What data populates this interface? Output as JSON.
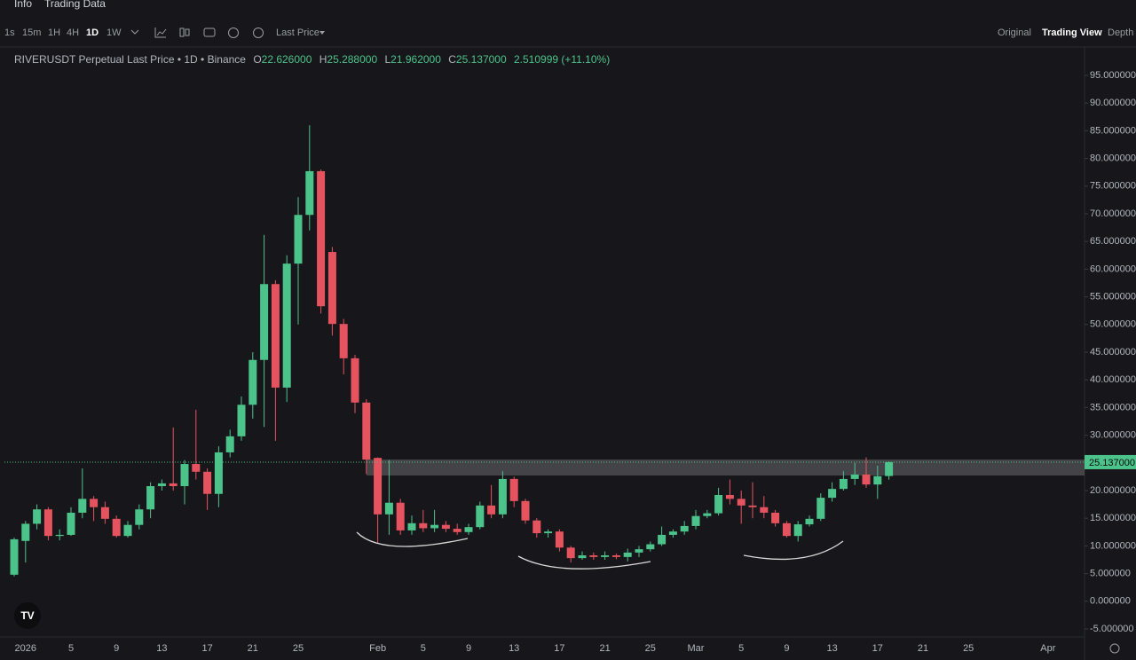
{
  "toolbar": {
    "tabs": [
      "Info",
      "Trading Data"
    ],
    "intervals": [
      "1s",
      "15m",
      "1H",
      "4H",
      "1D",
      "1W"
    ],
    "price_type": "Last Price",
    "views": [
      "Original",
      "Trading View",
      "Depth"
    ]
  },
  "chart_data": {
    "type": "candlestick",
    "title": "RIVERUSDT Perpetual Last Price • 1D • Binance",
    "ohlc_legend": [
      {
        "key": "O",
        "value": "22.626000"
      },
      {
        "key": "H",
        "value": "25.288000"
      },
      {
        "key": "L",
        "value": "21.962000"
      },
      {
        "key": "C",
        "value": "25.137000"
      }
    ],
    "change": "2.510999 (+11.10%)",
    "categories": [
      null,
      "2026",
      null,
      null,
      null,
      "5",
      null,
      null,
      null,
      "9",
      null,
      null,
      null,
      "13",
      null,
      null,
      null,
      "17",
      null,
      null,
      null,
      "21",
      null,
      null,
      null,
      "25",
      null,
      null,
      null,
      null,
      null,
      null,
      "Feb",
      null,
      null,
      null,
      "5",
      null,
      null,
      null,
      "9",
      null,
      null,
      null,
      "13",
      null,
      null,
      null,
      "17",
      null,
      null,
      null,
      "21",
      null,
      null,
      null,
      "25",
      null,
      null,
      null,
      "Mar",
      null,
      null,
      null,
      "5",
      null,
      null,
      null,
      "9",
      null,
      null,
      null,
      "13",
      null,
      null,
      null,
      "17",
      null,
      null,
      null,
      "21",
      null,
      null,
      null,
      "25",
      null,
      null,
      null,
      null,
      null,
      null,
      "Apr"
    ],
    "open": [
      4.8,
      10.9,
      14.0,
      16.6,
      11.8,
      12.0,
      16.0,
      18.5,
      17.0,
      14.9,
      11.8,
      13.8,
      16.6,
      20.8,
      21.3,
      20.8,
      24.8,
      23.4,
      19.4,
      26.9,
      29.8,
      35.5,
      43.6,
      57.3,
      38.6,
      61.0,
      69.8,
      77.7,
      63.1,
      50.1,
      43.9,
      35.9,
      25.9,
      15.7,
      17.8,
      12.8,
      14.1,
      13.2,
      13.8,
      13.1,
      12.5,
      13.4,
      17.3,
      15.7,
      22.1,
      18.1,
      14.6,
      12.3,
      12.6,
      9.7,
      7.8,
      8.3,
      8.0,
      8.3,
      8.0,
      8.8,
      9.4,
      10.3,
      12.0,
      12.6,
      13.6,
      15.4,
      15.9,
      19.2,
      18.5,
      17.3,
      17.0,
      16.0,
      14.1,
      11.8,
      13.9,
      14.9,
      18.7,
      20.3,
      22.1,
      22.9,
      21.1,
      22.626,
      null,
      null,
      null,
      null,
      null,
      null,
      null,
      null,
      null,
      null,
      null,
      null,
      null,
      null
    ],
    "high": [
      11.5,
      14.5,
      17.5,
      17.0,
      13.0,
      17.0,
      24.0,
      19.0,
      18.0,
      15.5,
      14.5,
      17.5,
      21.5,
      22.0,
      31.4,
      25.5,
      34.6,
      24.0,
      28.0,
      31.0,
      37.0,
      45.0,
      66.2,
      58.0,
      62.5,
      73.0,
      86.0,
      78.0,
      64.0,
      51.0,
      44.5,
      36.5,
      26.0,
      25.5,
      18.5,
      15.5,
      16.5,
      16.5,
      14.5,
      14.0,
      14.0,
      18.0,
      21.0,
      23.5,
      22.5,
      18.5,
      15.0,
      13.0,
      13.0,
      10.0,
      9.0,
      8.8,
      9.0,
      8.6,
      9.5,
      10.0,
      10.8,
      13.5,
      13.0,
      14.5,
      16.5,
      16.5,
      20.5,
      22.0,
      20.0,
      21.5,
      19.0,
      16.5,
      14.5,
      14.5,
      15.5,
      19.5,
      21.5,
      23.5,
      25.0,
      26.0,
      24.5,
      25.288,
      null,
      null,
      null,
      null,
      null,
      null,
      null,
      null,
      null,
      null,
      null,
      null,
      null,
      null
    ],
    "low": [
      4.5,
      7.0,
      13.0,
      11.0,
      11.0,
      11.8,
      15.0,
      14.5,
      14.0,
      11.5,
      11.5,
      13.0,
      15.0,
      20.0,
      20.0,
      17.5,
      22.0,
      16.5,
      17.0,
      26.0,
      29.0,
      33.0,
      31.5,
      29.0,
      36.0,
      50.0,
      67.0,
      52.0,
      48.0,
      41.0,
      34.0,
      23.0,
      10.5,
      12.0,
      12.0,
      12.0,
      12.5,
      12.5,
      12.5,
      12.0,
      12.0,
      13.0,
      15.0,
      15.0,
      17.0,
      14.0,
      11.5,
      11.5,
      9.0,
      7.0,
      7.5,
      7.5,
      7.5,
      7.6,
      7.2,
      8.0,
      9.0,
      10.0,
      11.5,
      12.0,
      13.0,
      15.0,
      15.5,
      17.5,
      14.0,
      15.0,
      15.0,
      13.5,
      11.5,
      10.8,
      13.5,
      14.5,
      18.0,
      20.0,
      21.0,
      20.5,
      18.5,
      21.962,
      null,
      null,
      null,
      null,
      null,
      null,
      null,
      null,
      null,
      null,
      null,
      null,
      null,
      null
    ],
    "close": [
      11.2,
      14.0,
      16.6,
      11.8,
      12.0,
      16.0,
      18.5,
      17.0,
      14.9,
      11.8,
      13.8,
      16.6,
      20.8,
      21.3,
      20.8,
      24.8,
      23.4,
      19.4,
      26.9,
      29.8,
      35.5,
      43.6,
      57.3,
      38.6,
      61.0,
      69.8,
      77.7,
      53.3,
      50.1,
      43.9,
      35.9,
      25.6,
      15.7,
      17.8,
      12.8,
      14.1,
      13.2,
      13.8,
      13.1,
      12.5,
      13.4,
      17.3,
      15.7,
      22.1,
      18.1,
      14.6,
      12.3,
      12.6,
      9.7,
      7.8,
      8.3,
      8.0,
      8.3,
      8.0,
      8.8,
      9.4,
      10.3,
      12.0,
      12.6,
      13.6,
      15.4,
      15.9,
      19.2,
      18.5,
      17.3,
      17.0,
      16.0,
      14.1,
      11.8,
      13.9,
      14.9,
      18.7,
      20.3,
      22.1,
      22.9,
      21.1,
      22.6,
      25.137,
      null,
      null,
      null,
      null,
      null,
      null,
      null,
      null,
      null,
      null,
      null,
      null,
      null,
      null
    ],
    "up_color": "#4cc38a",
    "down_color": "#e5535f",
    "ylim": [
      -5,
      95
    ],
    "yticks": [
      {
        "value": -5,
        "label": "-5.000000"
      },
      {
        "value": 0,
        "label": "0.000000"
      },
      {
        "value": 5,
        "label": "5.000000"
      },
      {
        "value": 10,
        "label": "10.000000"
      },
      {
        "value": 15,
        "label": "15.000000"
      },
      {
        "value": 20,
        "label": "20.000000"
      },
      {
        "value": 25,
        "label": "25.000000"
      },
      {
        "value": 30,
        "label": "30.000000"
      },
      {
        "value": 35,
        "label": "35.000000"
      },
      {
        "value": 40,
        "label": "40.000000"
      },
      {
        "value": 45,
        "label": "45.000000"
      },
      {
        "value": 50,
        "label": "50.000000"
      },
      {
        "value": 55,
        "label": "55.000000"
      },
      {
        "value": 60,
        "label": "60.000000"
      },
      {
        "value": 65,
        "label": "65.000000"
      },
      {
        "value": 70,
        "label": "70.000000"
      },
      {
        "value": 75,
        "label": "75.000000"
      },
      {
        "value": 80,
        "label": "80.000000"
      },
      {
        "value": 85,
        "label": "85.000000"
      },
      {
        "value": 90,
        "label": "90.000000"
      },
      {
        "value": 95,
        "label": "95.000000"
      }
    ],
    "last_price": {
      "value": 25.137,
      "label": "25.137000"
    },
    "grid": false
  }
}
